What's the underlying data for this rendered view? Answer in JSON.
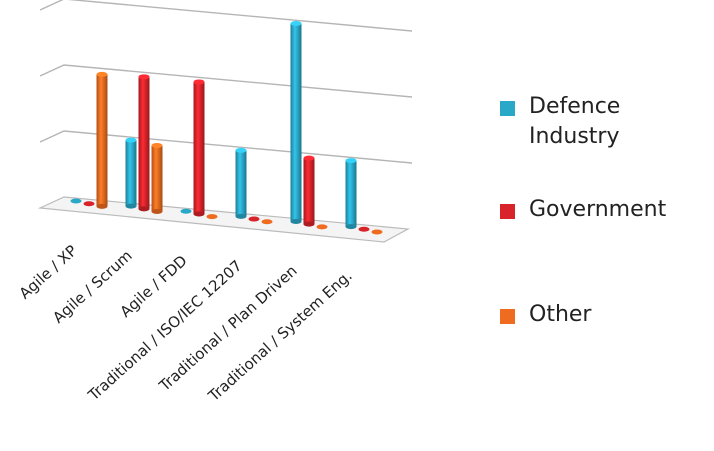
{
  "chart_data": {
    "type": "bar",
    "title": "",
    "xlabel": "",
    "ylabel": "",
    "ylim": [
      0,
      3
    ],
    "grid": true,
    "legend_position": "right",
    "categories": [
      "Agile / XP",
      "Agile / Scrum",
      "Agile / FDD",
      "Traditional / ISO/IEC 12207",
      "Traditional / Plan Driven",
      "Traditional / System Eng."
    ],
    "series": [
      {
        "name": "Defence Industry",
        "color": "#2aa8c8",
        "values": [
          0,
          1,
          0,
          1,
          3,
          1
        ]
      },
      {
        "name": "Government",
        "color": "#d8232a",
        "values": [
          0,
          2,
          2,
          0,
          1,
          0
        ]
      },
      {
        "name": "Other",
        "color": "#ef6b1f",
        "values": [
          2,
          1,
          0,
          0,
          0,
          0
        ]
      }
    ]
  }
}
